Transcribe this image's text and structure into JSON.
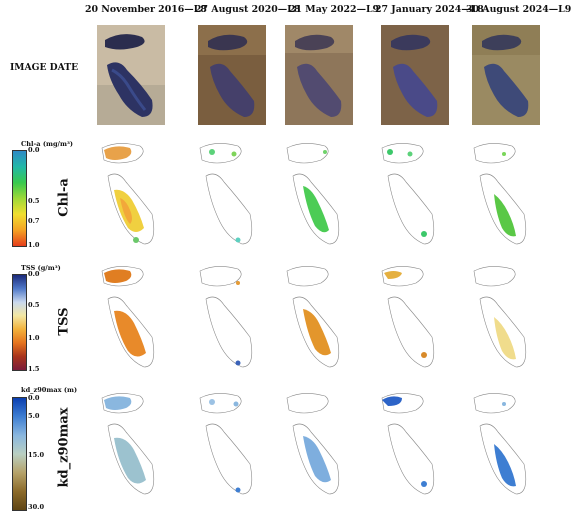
{
  "header": {
    "row_title": "IMAGE DATE",
    "dates": [
      "20 November 2016—L8",
      "27 August 2020—L8",
      "21 May 2022—L9",
      "27 January 2024—L8",
      "30 August 2024—L9"
    ]
  },
  "rows": [
    {
      "label": "Chl-a",
      "colorbar_title": "Chl-a (mg/m³)",
      "ticks": [
        "0.0",
        "0.5",
        "0.7",
        "1.0"
      ],
      "colors": [
        "#2e8ac6",
        "#22b8a8",
        "#38c94e",
        "#9ed938",
        "#f0de30",
        "#f4a224",
        "#e53e1c"
      ]
    },
    {
      "label": "TSS",
      "colorbar_title": "TSS (g/m³)",
      "ticks": [
        "0.0",
        "0.5",
        "1.0",
        "1.5"
      ],
      "colors": [
        "#1b2a7a",
        "#4f78c8",
        "#c9d8ee",
        "#f3e7a3",
        "#f2b23c",
        "#e5741f",
        "#a8341c",
        "#7a1c3a"
      ]
    },
    {
      "label": "kd_z90max",
      "colorbar_title": "kd_z90max (m)",
      "ticks": [
        "0.0",
        "5.0",
        "15.0",
        "30.0"
      ],
      "colors": [
        "#0b3fb0",
        "#3e7ed2",
        "#8ab7df",
        "#b9cfc2",
        "#b5a26a",
        "#8c6a2a",
        "#5e4414"
      ]
    }
  ]
}
